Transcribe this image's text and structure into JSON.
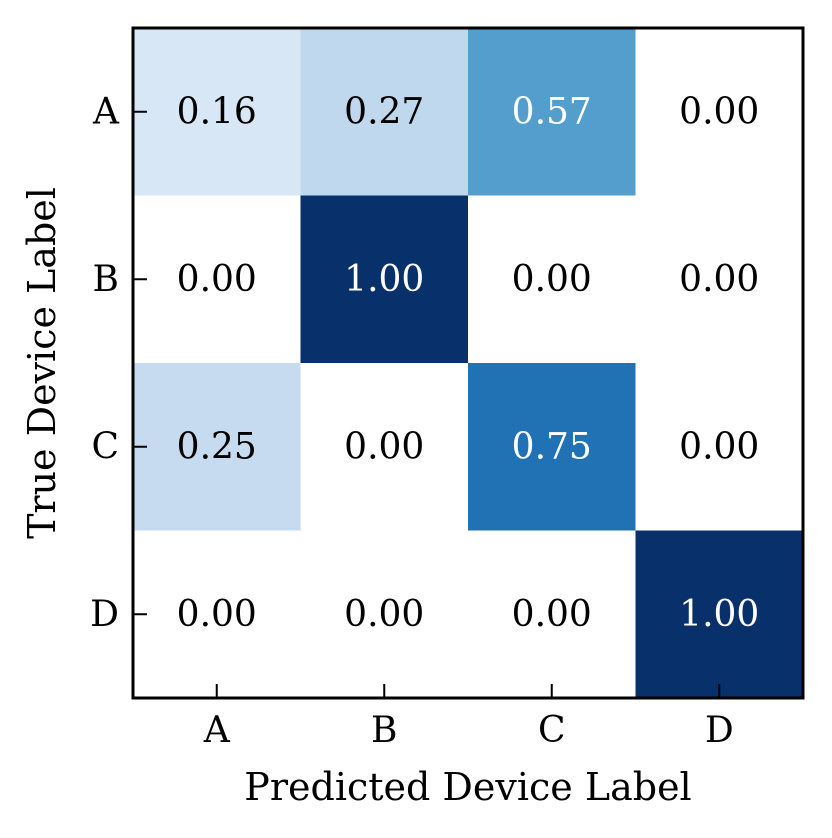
{
  "chart_data": {
    "type": "heatmap",
    "title": "",
    "xlabel": "Predicted Device Label",
    "ylabel": "True Device Label",
    "x_categories": [
      "A",
      "B",
      "C",
      "D"
    ],
    "y_categories": [
      "A",
      "B",
      "C",
      "D"
    ],
    "values": [
      [
        0.16,
        0.27,
        0.57,
        0.0
      ],
      [
        0.0,
        1.0,
        0.0,
        0.0
      ],
      [
        0.25,
        0.0,
        0.75,
        0.0
      ],
      [
        0.0,
        0.0,
        0.0,
        1.0
      ]
    ],
    "value_range": [
      0,
      1
    ],
    "colormap": "Blues",
    "colors": {
      "low": "#ffffff",
      "high": "#08306b",
      "text_dark": "#000000",
      "text_light": "#ffffff"
    }
  }
}
